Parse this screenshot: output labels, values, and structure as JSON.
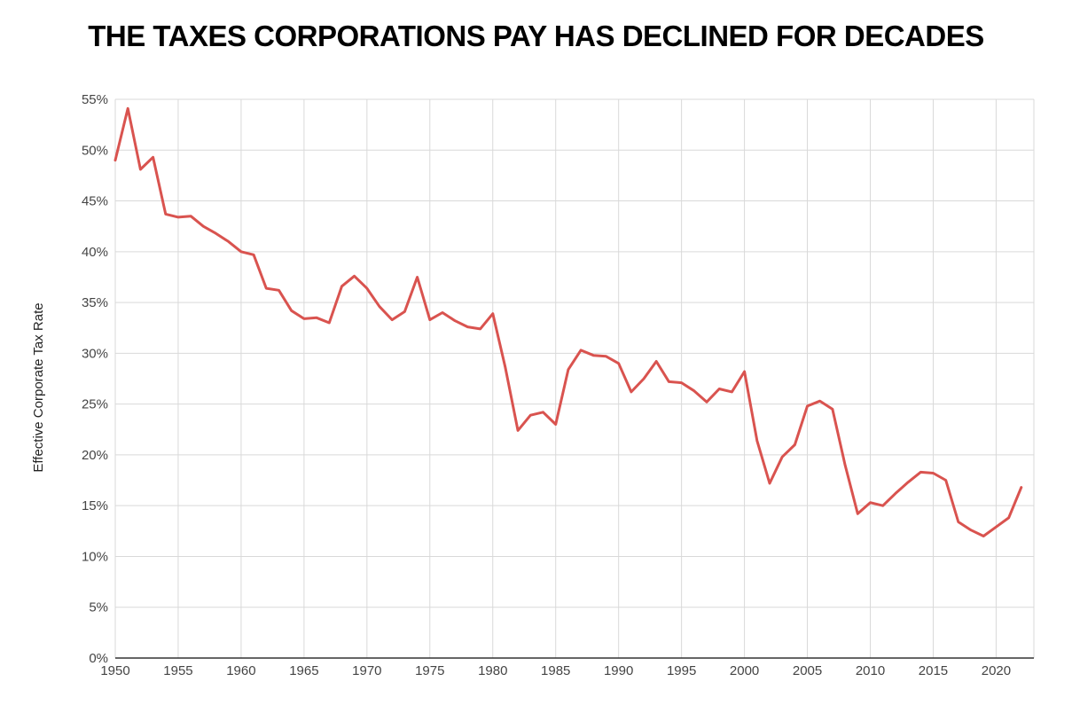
{
  "chart_data": {
    "type": "line",
    "title": "THE TAXES CORPORATIONS PAY HAS DECLINED FOR DECADES",
    "xlabel": "",
    "ylabel": "Effective Corporate Tax Rate",
    "xlim": [
      1950,
      2023
    ],
    "ylim": [
      0,
      55
    ],
    "x_ticks": [
      1950,
      1955,
      1960,
      1965,
      1970,
      1975,
      1980,
      1985,
      1990,
      1995,
      2000,
      2005,
      2010,
      2015,
      2020
    ],
    "y_ticks": [
      0,
      5,
      10,
      15,
      20,
      25,
      30,
      35,
      40,
      45,
      50,
      55
    ],
    "y_tick_suffix": "%",
    "grid": true,
    "line_color": "#d9534f",
    "series": [
      {
        "x": [
          1950,
          1951,
          1952,
          1953,
          1954,
          1955,
          1956,
          1957,
          1958,
          1959,
          1960,
          1961,
          1962,
          1963,
          1964,
          1965,
          1966,
          1967,
          1968,
          1969,
          1970,
          1971,
          1972,
          1973,
          1974,
          1975,
          1976,
          1977,
          1978,
          1979,
          1980,
          1981,
          1982,
          1983,
          1984,
          1985,
          1986,
          1987,
          1988,
          1989,
          1990,
          1991,
          1992,
          1993,
          1994,
          1995,
          1996,
          1997,
          1998,
          1999,
          2000,
          2001,
          2002,
          2003,
          2004,
          2005,
          2006,
          2007,
          2008,
          2009,
          2010,
          2011,
          2012,
          2013,
          2014,
          2015,
          2016,
          2017,
          2018,
          2019,
          2020,
          2021,
          2022
        ],
        "y": [
          49.0,
          54.1,
          48.1,
          49.3,
          43.7,
          43.4,
          43.5,
          42.5,
          41.8,
          41.0,
          40.0,
          39.7,
          36.4,
          36.2,
          34.2,
          33.4,
          33.5,
          33.0,
          36.6,
          37.6,
          36.4,
          34.6,
          33.3,
          34.1,
          37.5,
          33.3,
          34.0,
          33.2,
          32.6,
          32.4,
          33.9,
          28.6,
          22.4,
          23.9,
          24.2,
          23.0,
          28.4,
          30.3,
          29.8,
          29.7,
          29.0,
          26.2,
          27.5,
          29.2,
          27.2,
          27.1,
          26.3,
          25.2,
          26.5,
          26.2,
          28.2,
          21.4,
          17.2,
          19.8,
          21.0,
          24.8,
          25.3,
          24.5,
          19.0,
          14.2,
          15.3,
          15.0,
          16.2,
          17.3,
          18.3,
          18.2,
          17.5,
          13.4,
          12.6,
          12.0,
          12.9,
          13.8,
          16.8
        ]
      }
    ]
  }
}
